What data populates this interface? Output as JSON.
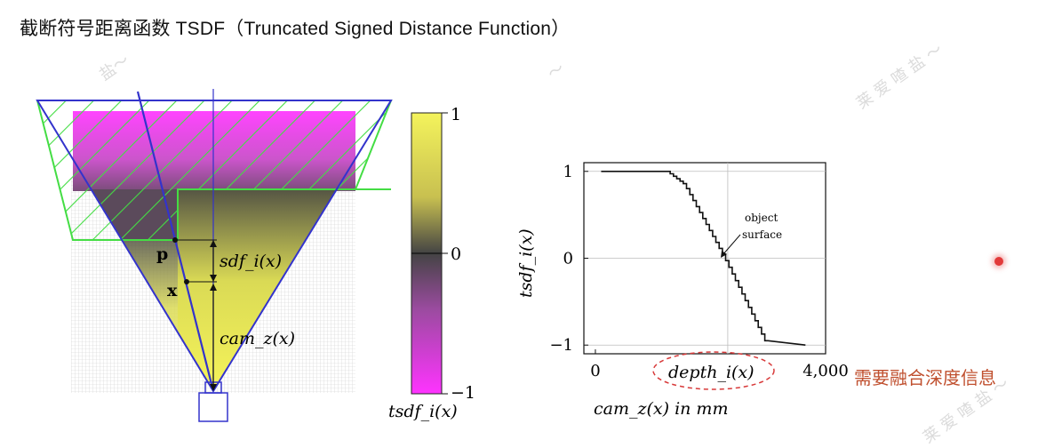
{
  "title": "截断符号距离函数 TSDF（Truncated Signed Distance Function）",
  "watermark": [
    "盐～",
    "～",
    "莱 爱 喳 盐 ～",
    "莱 爱 喳 盐 ～"
  ],
  "note": "需要融合深度信息",
  "colors": {
    "accent": "#c0502f",
    "hatch": "#44dd44",
    "frustum": "#3333cc",
    "magenta": "#ff33ff",
    "yellow": "#f4f35c"
  },
  "diagram": {
    "label_p": "p",
    "label_x": "x",
    "label_sdf": "sdf_i(x)",
    "label_cam": "cam_z(x)"
  },
  "colorbar": {
    "top_label": "1",
    "mid_label": "0",
    "bottom_label": "−1",
    "xlabel": "tsdf_i(x)"
  },
  "chart_data": {
    "type": "line",
    "xlabel": "cam_z(x) in mm",
    "ylabel": "tsdf_i(x)",
    "xlim": [
      -200,
      4000
    ],
    "ylim": [
      -1.1,
      1.1
    ],
    "xticks": [
      0,
      4000
    ],
    "xtick_labels": [
      "0",
      "4,000"
    ],
    "yticks": [
      -1,
      0,
      1
    ],
    "ytick_labels": [
      "−1",
      "0",
      "1"
    ],
    "grid": true,
    "annotation": [
      "object",
      "surface"
    ],
    "depth_label": "depth_i(x)",
    "series": [
      {
        "x": [
          100,
          1300,
          1600,
          2300,
          3000,
          3650
        ],
        "y": [
          1,
          1,
          0.85,
          0,
          -0.95,
          -1
        ]
      }
    ]
  }
}
